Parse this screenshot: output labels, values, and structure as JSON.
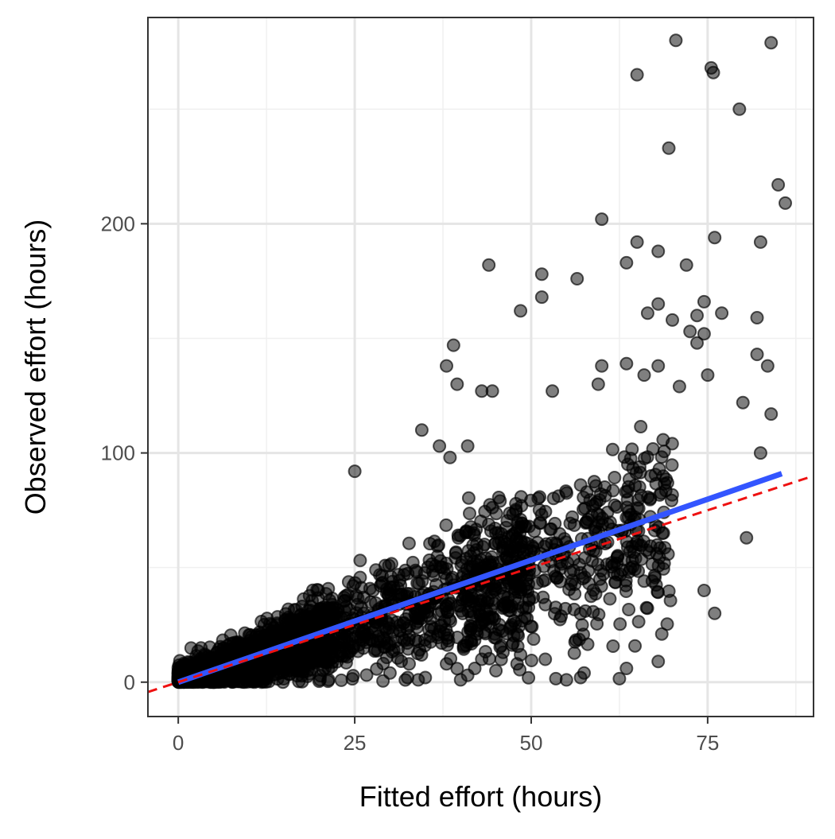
{
  "chart_data": {
    "type": "scatter",
    "title": "",
    "xlabel": "Fitted effort (hours)",
    "ylabel": "Observed effort (hours)",
    "xlim": [
      -4.3,
      90
    ],
    "ylim": [
      -15,
      290
    ],
    "x_ticks": [
      0,
      25,
      50,
      75
    ],
    "x_tick_labels": [
      "0",
      "25",
      "50",
      "75"
    ],
    "y_ticks": [
      0,
      100,
      200
    ],
    "y_tick_labels": [
      "0",
      "100",
      "200"
    ],
    "grid": true,
    "legend": "none",
    "points_note": "dense cloud of semi-transparent black points concentrated near the origin and along the diagonal; sparse outliers listed below",
    "outlier_points": [
      [
        70.5,
        280
      ],
      [
        84,
        279
      ],
      [
        75.5,
        268
      ],
      [
        65,
        265
      ],
      [
        75.8,
        266
      ],
      [
        79.5,
        250
      ],
      [
        69.5,
        233
      ],
      [
        85,
        217
      ],
      [
        86,
        209
      ],
      [
        60,
        202
      ],
      [
        65,
        192
      ],
      [
        82.5,
        192
      ],
      [
        76,
        194
      ],
      [
        68,
        188
      ],
      [
        63.5,
        183
      ],
      [
        72,
        182
      ],
      [
        44,
        182
      ],
      [
        51.5,
        178
      ],
      [
        56.5,
        176
      ],
      [
        51.5,
        168
      ],
      [
        68,
        165
      ],
      [
        74.5,
        166
      ],
      [
        48.5,
        162
      ],
      [
        66.5,
        161
      ],
      [
        70,
        158
      ],
      [
        77,
        161
      ],
      [
        82,
        159
      ],
      [
        73.5,
        160
      ],
      [
        72.5,
        153
      ],
      [
        74.5,
        152
      ],
      [
        39,
        147
      ],
      [
        73.5,
        148
      ],
      [
        82,
        143
      ],
      [
        38,
        138
      ],
      [
        60,
        138
      ],
      [
        63.5,
        139
      ],
      [
        68,
        138
      ],
      [
        83.5,
        138
      ],
      [
        75,
        134
      ],
      [
        39.5,
        130
      ],
      [
        59.5,
        130
      ],
      [
        66,
        134
      ],
      [
        71,
        129
      ],
      [
        43,
        127
      ],
      [
        44.5,
        127
      ],
      [
        53,
        127
      ],
      [
        84,
        117
      ],
      [
        80,
        122
      ],
      [
        34.5,
        110
      ],
      [
        25,
        92
      ],
      [
        37,
        103
      ],
      [
        41,
        103
      ],
      [
        38.5,
        98
      ],
      [
        82.5,
        100
      ],
      [
        57,
        86
      ],
      [
        80.5,
        63
      ],
      [
        76,
        30
      ],
      [
        74.5,
        40
      ],
      [
        68.5,
        21
      ],
      [
        68,
        9
      ],
      [
        62.5,
        1.5
      ],
      [
        63.5,
        6
      ],
      [
        57,
        2
      ],
      [
        55,
        1
      ],
      [
        53.5,
        1.5
      ],
      [
        57.5,
        4
      ],
      [
        45,
        5
      ],
      [
        48,
        8
      ],
      [
        43,
        10
      ],
      [
        46,
        13
      ],
      [
        48.5,
        12
      ],
      [
        52,
        10
      ],
      [
        30,
        4
      ],
      [
        32.5,
        2
      ],
      [
        34,
        1
      ],
      [
        35,
        2
      ],
      [
        40,
        1
      ],
      [
        41,
        3
      ],
      [
        42,
        6
      ],
      [
        38,
        8
      ],
      [
        29,
        0.5
      ]
    ],
    "series": [
      {
        "type": "line",
        "style": "solid",
        "color": "#3355ff",
        "x": [
          0,
          85.5
        ],
        "y": [
          0,
          91
        ]
      },
      {
        "type": "line",
        "style": "dashed",
        "color": "#ee1111",
        "x": [
          -4.3,
          90
        ],
        "y": [
          -4.3,
          90
        ]
      }
    ],
    "colors": {
      "points": "#000000",
      "panel_border": "#333333",
      "grid_major": "#e5e5e5",
      "grid_minor": "#f0f0f0"
    }
  }
}
